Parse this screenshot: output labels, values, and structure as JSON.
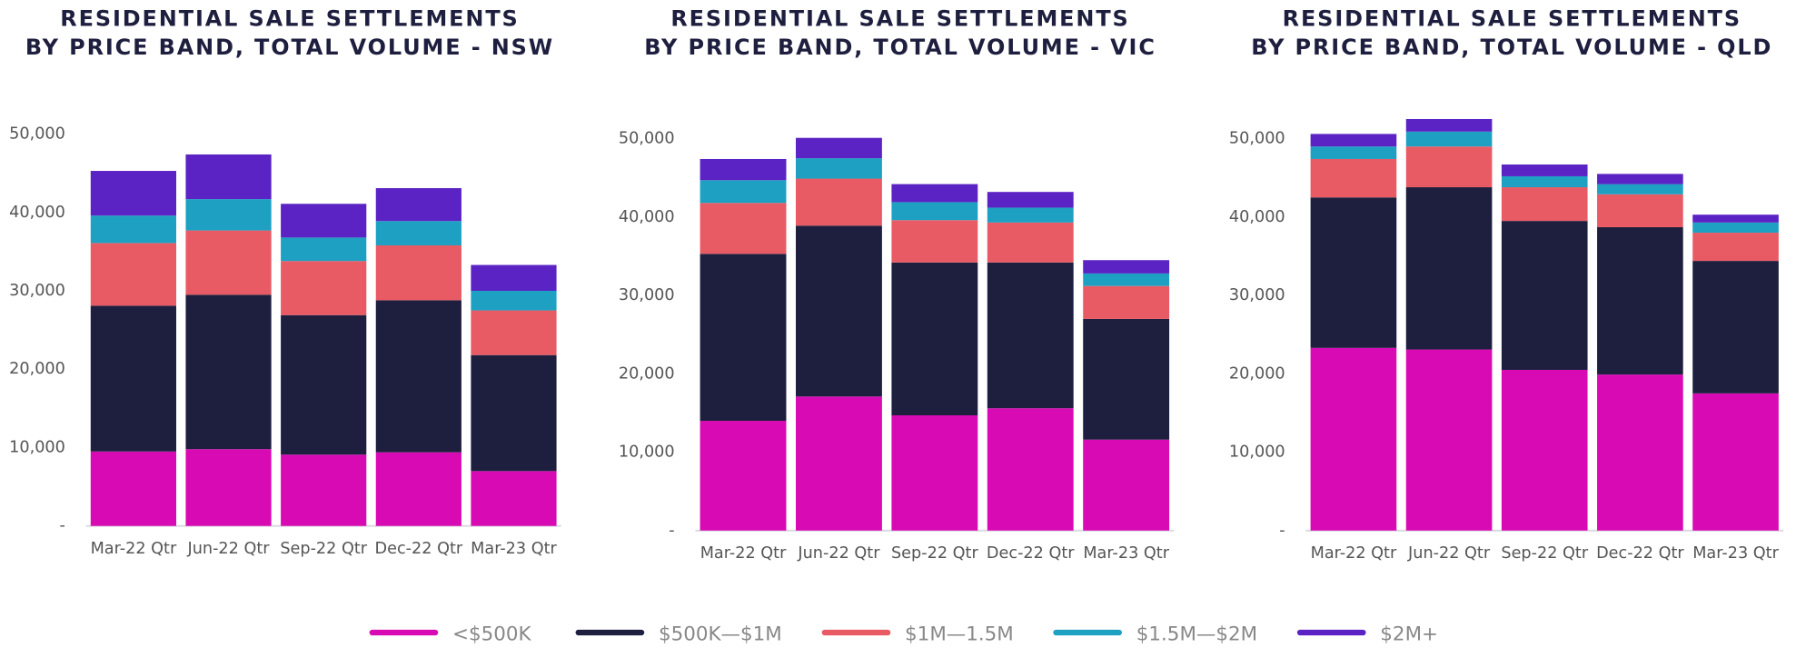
{
  "chart_data": [
    {
      "type": "stacked_bar",
      "title": [
        "RESIDENTIAL SALE SETTLEMENTS",
        "BY PRICE BAND, TOTAL VOLUME - NSW"
      ],
      "categories": [
        "Mar-22 Qtr",
        "Jun-22 Qtr",
        "Sep-22 Qtr",
        "Dec-22 Qtr",
        "Mar-23 Qtr"
      ],
      "ylim": [
        0,
        55000
      ],
      "yticks": [
        {
          "value": 0,
          "label": "-"
        },
        {
          "value": 10000,
          "label": "10,000"
        },
        {
          "value": 20000,
          "label": "20,000"
        },
        {
          "value": 30000,
          "label": "30,000"
        },
        {
          "value": 40000,
          "label": "40,000"
        },
        {
          "value": 50000,
          "label": "50,000"
        }
      ],
      "series": [
        {
          "name": "<$500K",
          "color": "#d80ab4",
          "values": [
            9500,
            9800,
            9100,
            9400,
            7000
          ]
        },
        {
          "name": "$500K—$1M",
          "color": "#1e1f3f",
          "values": [
            18600,
            19700,
            17800,
            19400,
            14800
          ]
        },
        {
          "name": "$1M—1.5M",
          "color": "#e85a64",
          "values": [
            8000,
            8200,
            6900,
            7000,
            5700
          ]
        },
        {
          "name": "$1.5M—$2M",
          "color": "#1ea0c3",
          "values": [
            3500,
            4000,
            3000,
            3100,
            2500
          ]
        },
        {
          "name": "$2M+",
          "color": "#5b22c4",
          "values": [
            5700,
            5700,
            4300,
            4200,
            3300
          ]
        }
      ]
    },
    {
      "type": "stacked_bar",
      "title": [
        "RESIDENTIAL SALE SETTLEMENTS",
        "BY PRICE BAND, TOTAL VOLUME - VIC"
      ],
      "categories": [
        "Mar-22 Qtr",
        "Jun-22 Qtr",
        "Sep-22 Qtr",
        "Dec-22 Qtr",
        "Mar-23 Qtr"
      ],
      "ylim": [
        0,
        55000
      ],
      "yticks": [
        {
          "value": 0,
          "label": "-"
        },
        {
          "value": 10000,
          "label": "10,000"
        },
        {
          "value": 20000,
          "label": "20,000"
        },
        {
          "value": 30000,
          "label": "30,000"
        },
        {
          "value": 40000,
          "label": "40,000"
        },
        {
          "value": 50000,
          "label": "50,000"
        }
      ],
      "series": [
        {
          "name": "<$500K",
          "color": "#d80ab4",
          "values": [
            14000,
            17100,
            14700,
            15600,
            11600
          ]
        },
        {
          "name": "$500K—$1M",
          "color": "#1e1f3f",
          "values": [
            21300,
            21800,
            19500,
            18600,
            15400
          ]
        },
        {
          "name": "$1M—1.5M",
          "color": "#e85a64",
          "values": [
            6500,
            6000,
            5400,
            5100,
            4200
          ]
        },
        {
          "name": "$1.5M—$2M",
          "color": "#1ea0c3",
          "values": [
            2900,
            2600,
            2300,
            1900,
            1600
          ]
        },
        {
          "name": "$2M+",
          "color": "#5b22c4",
          "values": [
            2700,
            2600,
            2300,
            2000,
            1700
          ]
        }
      ]
    },
    {
      "type": "stacked_bar",
      "title": [
        "RESIDENTIAL SALE SETTLEMENTS",
        "BY PRICE BAND, TOTAL VOLUME - QLD"
      ],
      "categories": [
        "Mar-22 Qtr",
        "Jun-22 Qtr",
        "Sep-22 Qtr",
        "Dec-22 Qtr",
        "Mar-23 Qtr"
      ],
      "ylim": [
        0,
        55000
      ],
      "yticks": [
        {
          "value": 0,
          "label": "-"
        },
        {
          "value": 10000,
          "label": "10,000"
        },
        {
          "value": 20000,
          "label": "20,000"
        },
        {
          "value": 30000,
          "label": "30,000"
        },
        {
          "value": 40000,
          "label": "40,000"
        },
        {
          "value": 50000,
          "label": "50,000"
        }
      ],
      "series": [
        {
          "name": "<$500K",
          "color": "#d80ab4",
          "values": [
            23300,
            23100,
            20500,
            19900,
            17500
          ]
        },
        {
          "name": "$500K—$1M",
          "color": "#1e1f3f",
          "values": [
            19200,
            20700,
            19000,
            18800,
            16900
          ]
        },
        {
          "name": "$1M—1.5M",
          "color": "#e85a64",
          "values": [
            4900,
            5200,
            4300,
            4200,
            3600
          ]
        },
        {
          "name": "$1.5M—$2M",
          "color": "#1ea0c3",
          "values": [
            1600,
            1900,
            1400,
            1300,
            1300
          ]
        },
        {
          "name": "$2M+",
          "color": "#5b22c4",
          "values": [
            1600,
            1600,
            1500,
            1300,
            1000
          ]
        }
      ]
    }
  ]
}
